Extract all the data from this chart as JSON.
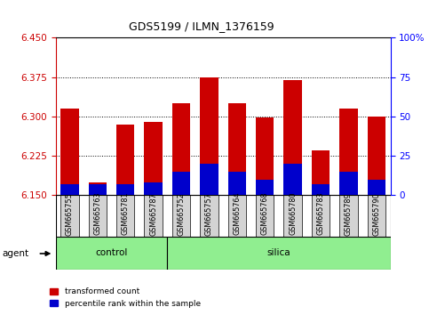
{
  "title": "GDS5199 / ILMN_1376159",
  "samples": [
    "GSM665755",
    "GSM665763",
    "GSM665781",
    "GSM665787",
    "GSM665752",
    "GSM665757",
    "GSM665764",
    "GSM665768",
    "GSM665780",
    "GSM665783",
    "GSM665789",
    "GSM665790"
  ],
  "groups": [
    "control",
    "control",
    "control",
    "control",
    "silica",
    "silica",
    "silica",
    "silica",
    "silica",
    "silica",
    "silica",
    "silica"
  ],
  "red_tops": [
    6.315,
    6.175,
    6.285,
    6.29,
    6.325,
    6.375,
    6.325,
    6.298,
    6.37,
    6.235,
    6.315,
    6.3
  ],
  "blue_pct": [
    7,
    7,
    7,
    8,
    15,
    20,
    15,
    10,
    20,
    7,
    15,
    10
  ],
  "ymin": 6.15,
  "ymax": 6.45,
  "yticks_left": [
    6.15,
    6.225,
    6.3,
    6.375,
    6.45
  ],
  "yticks_right": [
    0,
    25,
    50,
    75,
    100
  ],
  "bar_bottom": 6.15,
  "bar_width": 0.65,
  "red_color": "#cc0000",
  "blue_color": "#0000cc",
  "bg_xtick": "#c8c8c8",
  "control_color": "#90ee90",
  "silica_color": "#90ee90",
  "agent_label": "agent",
  "legend_red": "transformed count",
  "legend_blue": "percentile rank within the sample",
  "n_control": 4,
  "n_silica": 8
}
